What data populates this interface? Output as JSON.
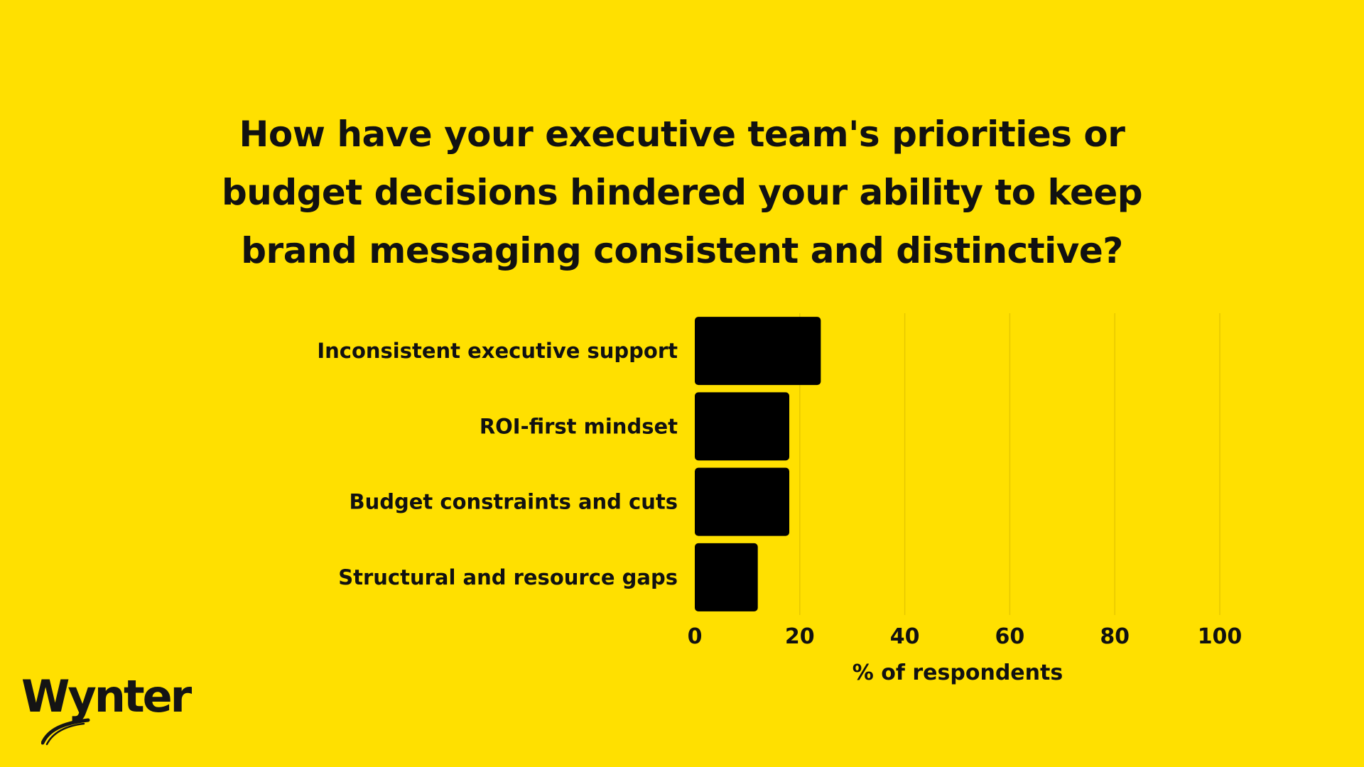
{
  "colors": {
    "background": "#FFE000",
    "bar": "#000000",
    "text": "#111111",
    "grid": "#E6C800"
  },
  "chart_data": {
    "type": "bar",
    "orientation": "horizontal",
    "title_lines": [
      "How have your executive team's priorities or",
      "budget decisions hindered your ability to keep",
      "brand messaging consistent and distinctive?"
    ],
    "categories": [
      "Inconsistent executive support",
      "ROI-first mindset",
      "Budget constraints and cuts",
      "Structural and resource gaps"
    ],
    "values": [
      24,
      18,
      18,
      12
    ],
    "xlabel": "% of respondents",
    "ylabel": "",
    "xlim": [
      0,
      100
    ],
    "xticks": [
      "0",
      "20",
      "40",
      "60",
      "80",
      "100"
    ],
    "grid": "vertical",
    "legend": "none"
  },
  "brand": {
    "logo_text": "Wynter",
    "logo_icon": "brush-swoosh"
  }
}
